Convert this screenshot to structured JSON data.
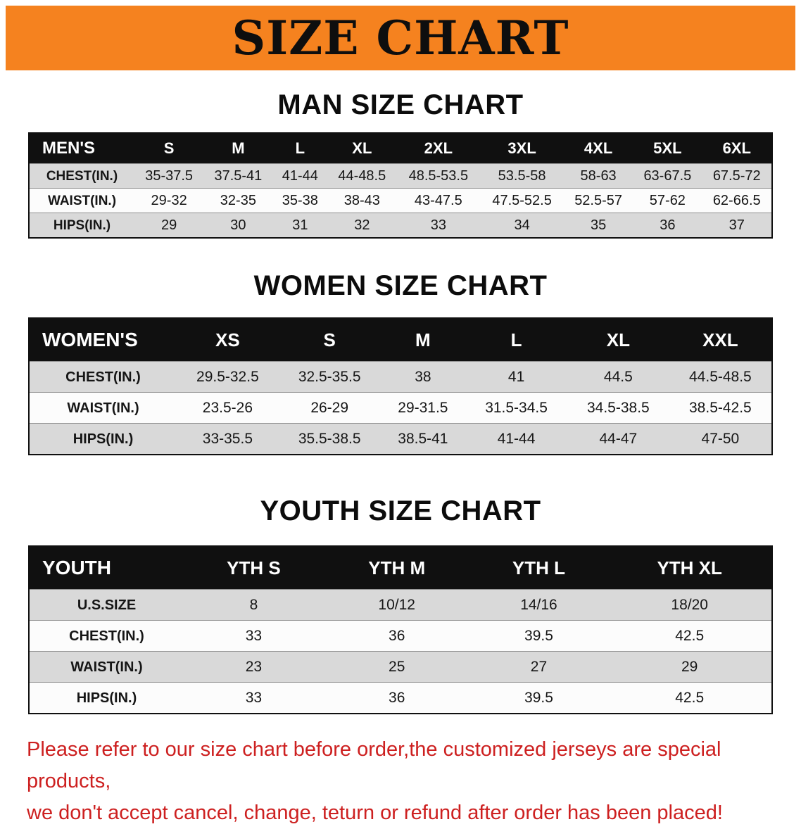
{
  "page": {
    "title": "SIZE CHART",
    "note_lines": [
      "Please refer to our size chart before order,the customized jerseys are special products,",
      "we don't accept cancel, change, teturn or refund after order has been placed!"
    ],
    "colors": {
      "banner_orange": "#f5821f",
      "header_black": "#101010",
      "stripe_gray": "#d9d9d9",
      "note_red": "#cd2020"
    }
  },
  "men": {
    "title": "MAN SIZE CHART",
    "table": {
      "header": [
        "MEN'S",
        "S",
        "M",
        "L",
        "XL",
        "2XL",
        "3XL",
        "4XL",
        "5XL",
        "6XL"
      ],
      "rows": [
        [
          "CHEST(IN.)",
          "35-37.5",
          "37.5-41",
          "41-44",
          "44-48.5",
          "48.5-53.5",
          "53.5-58",
          "58-63",
          "63-67.5",
          "67.5-72"
        ],
        [
          "WAIST(IN.)",
          "29-32",
          "32-35",
          "35-38",
          "38-43",
          "43-47.5",
          "47.5-52.5",
          "52.5-57",
          "57-62",
          "62-66.5"
        ],
        [
          "HIPS(IN.)",
          "29",
          "30",
          "31",
          "32",
          "33",
          "34",
          "35",
          "36",
          "37"
        ]
      ]
    }
  },
  "women": {
    "title": "WOMEN SIZE CHART",
    "table": {
      "header": [
        "WOMEN'S",
        "XS",
        "S",
        "M",
        "L",
        "XL",
        "XXL"
      ],
      "rows": [
        [
          "CHEST(IN.)",
          "29.5-32.5",
          "32.5-35.5",
          "38",
          "41",
          "44.5",
          "44.5-48.5"
        ],
        [
          "WAIST(IN.)",
          "23.5-26",
          "26-29",
          "29-31.5",
          "31.5-34.5",
          "34.5-38.5",
          "38.5-42.5"
        ],
        [
          "HIPS(IN.)",
          "33-35.5",
          "35.5-38.5",
          "38.5-41",
          "41-44",
          "44-47",
          "47-50"
        ]
      ]
    }
  },
  "youth": {
    "title": "YOUTH SIZE CHART",
    "table": {
      "header": [
        "YOUTH",
        "YTH S",
        "YTH M",
        "YTH L",
        "YTH XL"
      ],
      "rows": [
        [
          "U.S.SIZE",
          "8",
          "10/12",
          "14/16",
          "18/20"
        ],
        [
          "CHEST(IN.)",
          "33",
          "36",
          "39.5",
          "42.5"
        ],
        [
          "WAIST(IN.)",
          "23",
          "25",
          "27",
          "29"
        ],
        [
          "HIPS(IN.)",
          "33",
          "36",
          "39.5",
          "42.5"
        ]
      ]
    }
  }
}
